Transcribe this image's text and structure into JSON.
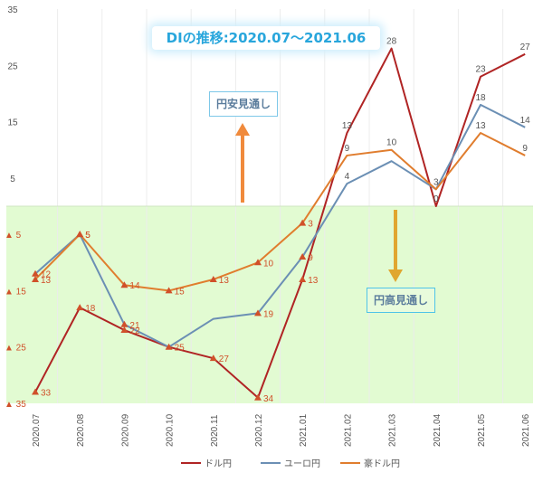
{
  "title": "DIの推移:2020.07～2021.06",
  "annotations": {
    "yen_weak": "円安見通し",
    "yen_strong": "円高見通し"
  },
  "colors": {
    "usd": "#b02424",
    "eur": "#6b8fb4",
    "aud": "#e07d2e",
    "marker": "#d0502a",
    "positive_bg": "#ffffff",
    "negative_bg": "#e2fbd2",
    "up_arrow": "#f08a3c",
    "down_arrow": "#e0a630",
    "title_color": "#28a6dc"
  },
  "chart_data": {
    "type": "line",
    "title": "DIの推移:2020.07～2021.06",
    "categories": [
      "2020.07",
      "2020.08",
      "2020.09",
      "2020.10",
      "2020.11",
      "2020.12",
      "2021.01",
      "2021.02",
      "2021.03",
      "2021.04",
      "2021.05",
      "2021.06"
    ],
    "y_ticks": [
      "35",
      "25",
      "15",
      "5",
      "▲ 5",
      "▲ 15",
      "▲ 25",
      "▲ 35"
    ],
    "ylim": [
      -35,
      35
    ],
    "negative_prefix": "▲",
    "series": [
      {
        "name": "ドル円",
        "color": "#b02424",
        "values": [
          -33,
          -18,
          -22,
          -25,
          -27,
          -34,
          -13,
          13,
          28,
          0,
          23,
          27
        ]
      },
      {
        "name": "ユーロ円",
        "color": "#6b8fb4",
        "values": [
          -12,
          -5,
          -21,
          -25,
          -20,
          -19,
          -9,
          4,
          8,
          3,
          18,
          14
        ]
      },
      {
        "name": "豪ドル円",
        "color": "#e07d2e",
        "values": [
          -13,
          -5,
          -14,
          -15,
          -13,
          -10,
          -3,
          9,
          10,
          3,
          13,
          9
        ]
      }
    ],
    "labels_shown": {
      "ドル円": [
        -33,
        -18,
        -22,
        -25,
        -27,
        -34,
        -13,
        13,
        28,
        0,
        23,
        27
      ],
      "ユーロ円": [
        -12,
        -5,
        -21,
        null,
        null,
        -19,
        -9,
        4,
        null,
        3,
        18,
        14
      ],
      "豪ドル円": [
        -13,
        -5,
        -14,
        -15,
        -13,
        -10,
        -3,
        9,
        10,
        null,
        13,
        9
      ]
    },
    "grid": true,
    "legend": "bottom"
  }
}
